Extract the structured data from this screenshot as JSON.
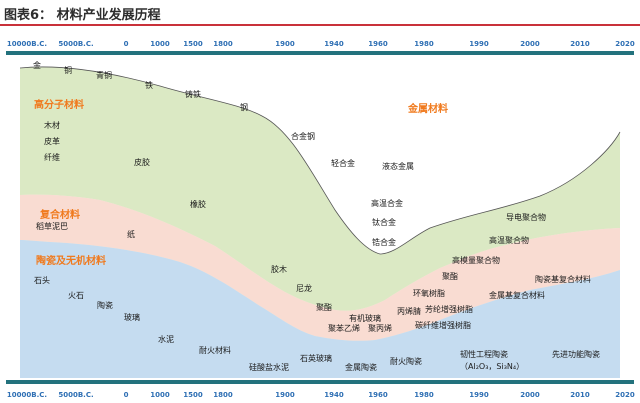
{
  "header": {
    "title": "图表6： 材料产业发展历程"
  },
  "axis": {
    "ticks": [
      "10000B.C.",
      "5000B.C.",
      "0",
      "1000",
      "1500",
      "1800",
      "1900",
      "1940",
      "1960",
      "1980",
      "1990",
      "2000",
      "2010",
      "2020"
    ]
  },
  "categories": {
    "polymer": "高分子材料",
    "composite": "复合材料",
    "ceramic": "陶瓷及无机材料",
    "metal": "金属材料"
  },
  "labels": {
    "gold": "金",
    "copper": "铜",
    "bronze": "青铜",
    "iron": "铁",
    "cast_iron": "铸铁",
    "steel": "钢",
    "wood": "木材",
    "leather": "皮革",
    "fiber": "纤维",
    "skin_glue": "皮胶",
    "rubber": "橡胶",
    "straw_mud": "稻草泥巴",
    "paper": "纸",
    "stone": "石头",
    "flint": "火石",
    "pottery": "陶瓷",
    "glass": "玻璃",
    "cement": "水泥",
    "refractory": "耐火材料",
    "silicate_cement": "硅酸盐水泥",
    "quartz_glass": "石英玻璃",
    "glue_wood": "胶木",
    "nylon": "尼龙",
    "polyester": "聚酯",
    "organic_glass": "有机玻璃",
    "polystyrene": "聚苯乙烯",
    "polypropylene": "聚丙烯",
    "acrylonitrile": "丙烯腈",
    "metal_ceramic": "金属陶瓷",
    "refractory_ceramic": "耐火陶瓷",
    "alloy_steel": "合金钢",
    "light_alloy": "轻合金",
    "liquid_metal": "液态金属",
    "superalloy": "高温合金",
    "titanium_alloy": "钛合金",
    "zirconium_alloy": "锆合金",
    "conductive_polymer": "导电聚合物",
    "high_temp_polymer": "高温聚合物",
    "high_modulus_polymer": "高模量聚合物",
    "aramid": "聚酯",
    "epoxy": "环氧树脂",
    "aramid_fiber": "芳纶增强树脂",
    "carbon_fiber": "碳纤维增强树脂",
    "ceramic_composite": "陶瓷基复合材料",
    "metal_composite": "金属基复合材料",
    "tough_ceramic": "韧性工程陶瓷",
    "tough_ceramic_formula": "（Al₂O₃，Si₃N₄）",
    "functional_ceramic": "先进功能陶瓷"
  },
  "colors": {
    "metal": "#edf3e3",
    "polymer": "#dbe9c4",
    "composite": "#f9dcd2",
    "ceramic": "#c5dcf0",
    "axis_bar": "#23727d",
    "category": "#f07a1e",
    "tick": "#2e6fb4"
  }
}
